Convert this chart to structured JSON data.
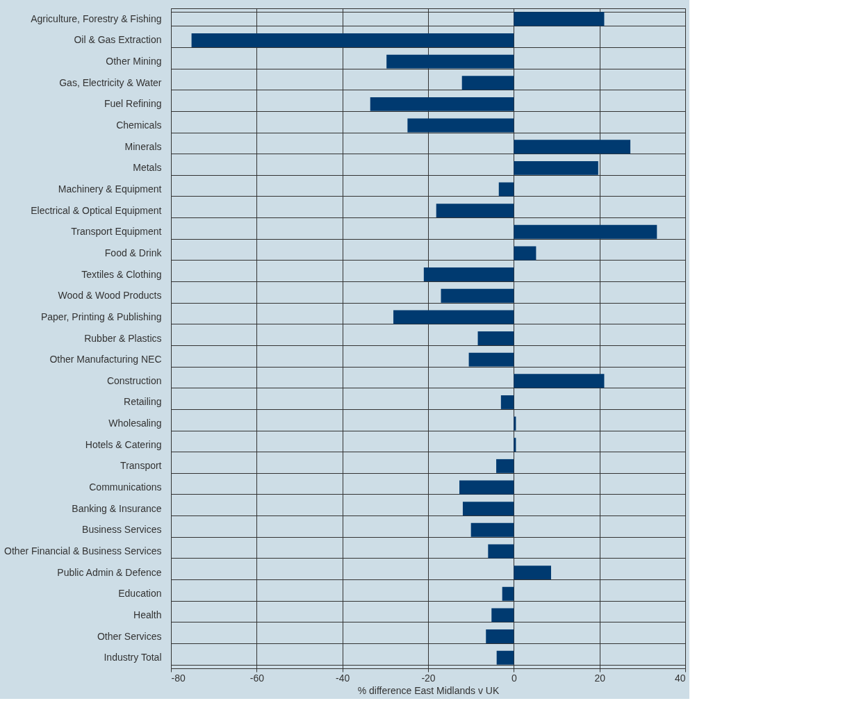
{
  "chart_data": {
    "type": "bar",
    "orientation": "horizontal",
    "xlabel": "% difference East Midlands v UK",
    "categories": [
      "Agriculture, Forestry & Fishing",
      "Oil & Gas Extraction",
      "Other Mining",
      "Gas, Electricity & Water",
      "Fuel Refining",
      "Chemicals",
      "Minerals",
      "Metals",
      "Machinery & Equipment",
      "Electrical & Optical Equipment",
      "Transport Equipment",
      "Food & Drink",
      "Textiles & Clothing",
      "Wood & Wood Products",
      "Paper, Printing & Publishing",
      "Rubber & Plastics",
      "Other Manufacturing NEC",
      "Construction",
      "Retailing",
      "Wholesaling",
      "Hotels & Catering",
      "Transport",
      "Communications",
      "Banking & Insurance",
      "Business Services",
      "Other Financial & Business Services",
      "Public Admin & Defence",
      "Education",
      "Health",
      "Other Services",
      "Industry Total"
    ],
    "values": [
      21.1,
      -75.2,
      -29.7,
      -12.1,
      -33.5,
      -24.8,
      27.2,
      19.7,
      -3.5,
      -18.1,
      33.4,
      5.2,
      -21.0,
      -17.0,
      -28.1,
      -8.4,
      -10.5,
      21.1,
      -3.0,
      0.5,
      0.5,
      -4.1,
      -12.7,
      -11.9,
      -10.0,
      -6.0,
      8.7,
      -2.7,
      -5.2,
      -6.5,
      -4.0
    ],
    "color": "#003a70",
    "xlim": [
      -80,
      40
    ],
    "xticks": [
      -80,
      -60,
      -40,
      -20,
      0,
      20,
      40
    ],
    "grid": true
  }
}
